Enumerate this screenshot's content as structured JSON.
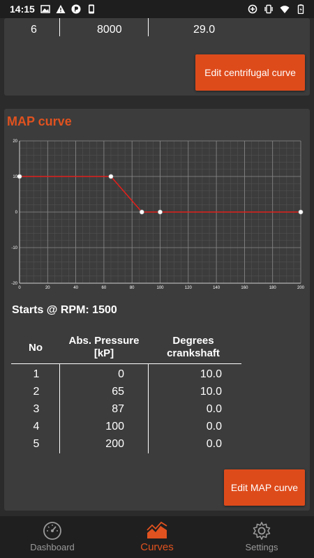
{
  "status_bar": {
    "time": "14:15",
    "left_icons": [
      "image-icon",
      "warning-icon",
      "parking-icon",
      "phone-icon"
    ],
    "right_icons": [
      "data-saver-icon",
      "vibrate-icon",
      "wifi-icon",
      "battery-icon"
    ]
  },
  "centrifugal_card": {
    "partial_row": {
      "no": "6",
      "rpm": "8000",
      "degrees": "29.0"
    },
    "edit_button_label": "Edit centrifugal curve"
  },
  "map_card": {
    "title": "MAP curve",
    "starts_label": "Starts @ RPM: 1500",
    "table": {
      "headers": {
        "no": "No",
        "pressure": "Abs. Pressure\n[kP]",
        "degrees": "Degrees\ncrankshaft"
      },
      "rows": [
        {
          "no": "1",
          "pressure": "0",
          "degrees": "10.0"
        },
        {
          "no": "2",
          "pressure": "65",
          "degrees": "10.0"
        },
        {
          "no": "3",
          "pressure": "87",
          "degrees": "0.0"
        },
        {
          "no": "4",
          "pressure": "100",
          "degrees": "0.0"
        },
        {
          "no": "5",
          "pressure": "200",
          "degrees": "0.0"
        }
      ]
    },
    "edit_button_label": "Edit MAP curve"
  },
  "chart_data": {
    "type": "line",
    "x": [
      0,
      65,
      87,
      100,
      200
    ],
    "series": [
      {
        "values": [
          10,
          10,
          0,
          0,
          0
        ]
      }
    ],
    "xlim": [
      0,
      200
    ],
    "ylim": [
      -20,
      20
    ],
    "x_ticks": [
      "0",
      "20",
      "40",
      "60",
      "80",
      "100",
      "120",
      "140",
      "160",
      "180",
      "200"
    ],
    "y_ticks": [
      "20",
      "10",
      "0",
      "-10",
      "-20"
    ],
    "grid": true,
    "line_color": "#e0201c",
    "point_color": "#ffffff"
  },
  "nav": {
    "items": [
      {
        "label": "Dashboard",
        "icon": "speedometer-icon",
        "active": false
      },
      {
        "label": "Curves",
        "icon": "area-chart-icon",
        "active": true
      },
      {
        "label": "Settings",
        "icon": "gear-icon",
        "active": false
      }
    ],
    "active_color": "#e0521f",
    "inactive_color": "#9a9a9a"
  }
}
